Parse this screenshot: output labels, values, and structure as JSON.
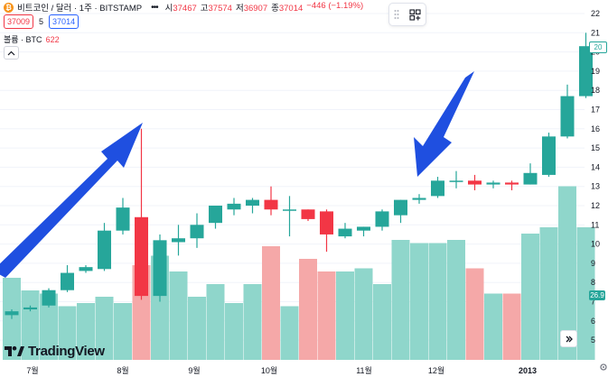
{
  "header": {
    "coin_icon": "bitcoin-icon",
    "symbol_title": "비트코인 / 달러 · 1주 · BITSTAMP",
    "more_label": "•••",
    "ohlc": [
      {
        "key": "시",
        "value": "37467"
      },
      {
        "key": "고",
        "value": "37574"
      },
      {
        "key": "저",
        "value": "36907"
      },
      {
        "key": "종",
        "value": "37014"
      }
    ],
    "change": "−446 (−1.19%)"
  },
  "bidask": {
    "sell": "37009",
    "spread": "5",
    "buy": "37014"
  },
  "volume_legend": {
    "label": "볼륨 · BTC",
    "value": "622"
  },
  "price_tags": {
    "last": "20",
    "volume": "26.9"
  },
  "colors": {
    "up": "#26a69a",
    "down": "#f23645",
    "vol_up": "#8fd6cb",
    "vol_down": "#f5a8a8",
    "arrow": "#1f4fe0"
  },
  "chart_data": {
    "type": "candlestick",
    "y_axis": {
      "min": 4,
      "max": 22,
      "ticks": [
        5,
        6,
        7,
        8,
        9,
        10,
        11,
        12,
        13,
        14,
        15,
        16,
        17,
        18,
        19,
        20,
        21,
        22
      ]
    },
    "x_axis": {
      "labels": [
        "7월",
        "8월",
        "9월",
        "10월",
        "11월",
        "12월",
        "2013"
      ]
    },
    "candles": [
      {
        "o": 6.3,
        "h": 6.6,
        "l": 6.1,
        "c": 6.5
      },
      {
        "o": 6.6,
        "h": 6.8,
        "l": 6.5,
        "c": 6.7
      },
      {
        "o": 6.8,
        "h": 7.7,
        "l": 6.7,
        "c": 7.6
      },
      {
        "o": 7.6,
        "h": 8.9,
        "l": 7.5,
        "c": 8.5
      },
      {
        "o": 8.6,
        "h": 8.9,
        "l": 8.5,
        "c": 8.8
      },
      {
        "o": 8.7,
        "h": 11.1,
        "l": 8.6,
        "c": 10.7
      },
      {
        "o": 10.7,
        "h": 12.4,
        "l": 10.5,
        "c": 11.9
      },
      {
        "o": 11.4,
        "h": 16.0,
        "l": 7.1,
        "c": 7.3
      },
      {
        "o": 7.3,
        "h": 10.5,
        "l": 7.0,
        "c": 10.2
      },
      {
        "o": 10.1,
        "h": 11.0,
        "l": 9.4,
        "c": 10.3
      },
      {
        "o": 10.3,
        "h": 11.6,
        "l": 9.8,
        "c": 11.0
      },
      {
        "o": 11.1,
        "h": 12.0,
        "l": 10.8,
        "c": 12.0
      },
      {
        "o": 11.8,
        "h": 12.4,
        "l": 11.5,
        "c": 12.1
      },
      {
        "o": 12.0,
        "h": 12.4,
        "l": 11.6,
        "c": 12.3
      },
      {
        "o": 12.3,
        "h": 13.0,
        "l": 11.5,
        "c": 11.8
      },
      {
        "o": 11.8,
        "h": 12.5,
        "l": 10.4,
        "c": 11.8
      },
      {
        "o": 11.8,
        "h": 11.8,
        "l": 11.2,
        "c": 11.3
      },
      {
        "o": 11.7,
        "h": 11.8,
        "l": 9.6,
        "c": 10.5
      },
      {
        "o": 10.4,
        "h": 11.1,
        "l": 10.3,
        "c": 10.8
      },
      {
        "o": 10.7,
        "h": 10.9,
        "l": 10.4,
        "c": 10.9
      },
      {
        "o": 10.9,
        "h": 11.8,
        "l": 10.7,
        "c": 11.7
      },
      {
        "o": 11.5,
        "h": 12.3,
        "l": 11.1,
        "c": 12.3
      },
      {
        "o": 12.3,
        "h": 12.6,
        "l": 12.1,
        "c": 12.4
      },
      {
        "o": 12.5,
        "h": 13.5,
        "l": 12.4,
        "c": 13.3
      },
      {
        "o": 13.3,
        "h": 13.8,
        "l": 12.9,
        "c": 13.3
      },
      {
        "o": 13.3,
        "h": 13.6,
        "l": 12.8,
        "c": 13.1
      },
      {
        "o": 13.1,
        "h": 13.3,
        "l": 12.9,
        "c": 13.2
      },
      {
        "o": 13.2,
        "h": 13.3,
        "l": 12.8,
        "c": 13.1
      },
      {
        "o": 13.1,
        "h": 14.2,
        "l": 13.1,
        "c": 13.7
      },
      {
        "o": 13.6,
        "h": 15.8,
        "l": 13.5,
        "c": 15.6
      },
      {
        "o": 15.6,
        "h": 18.3,
        "l": 15.5,
        "c": 17.7
      },
      {
        "o": 17.7,
        "h": 21.0,
        "l": 17.6,
        "c": 20.3
      }
    ],
    "volume": [
      26,
      22,
      21,
      17,
      18,
      20,
      18,
      30,
      33,
      28,
      20,
      24,
      18,
      24,
      36,
      17,
      32,
      28,
      28,
      29,
      24,
      38,
      37,
      37,
      38,
      29,
      21,
      21,
      40,
      42,
      55,
      42
    ],
    "volume_scale_max": 60
  }
}
